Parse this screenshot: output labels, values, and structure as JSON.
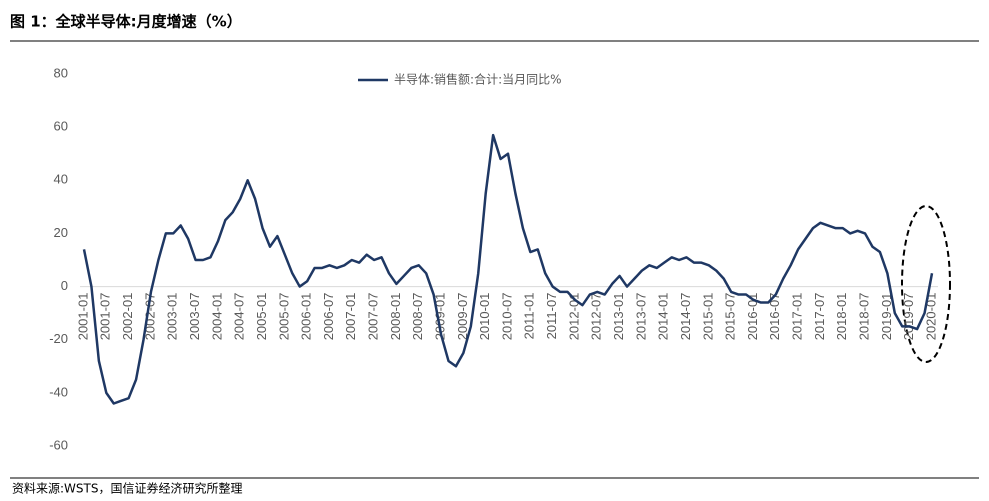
{
  "chart_data": {
    "type": "line",
    "title": "图 1：全球半导体:月度增速（%）",
    "source": "资料来源:WSTS，国信证券经济研究所整理",
    "categories": [
      "2001-01",
      null,
      null,
      "2001-07",
      null,
      null,
      "2002-01",
      null,
      null,
      "2002-07",
      null,
      null,
      "2003-01",
      null,
      null,
      "2003-07",
      null,
      null,
      "2004-01",
      null,
      null,
      "2004-07",
      null,
      null,
      "2005-01",
      null,
      null,
      "2005-07",
      null,
      null,
      "2006-01",
      null,
      null,
      "2006-07",
      null,
      null,
      "2007-01",
      null,
      null,
      "2007-07",
      null,
      null,
      "2008-01",
      null,
      null,
      "2008-07",
      null,
      null,
      "2009-01",
      null,
      null,
      "2009-07",
      null,
      null,
      "2010-01",
      null,
      null,
      "2010-07",
      null,
      null,
      "2011-01",
      null,
      null,
      "2011-07",
      null,
      null,
      "2012-01",
      null,
      null,
      "2012-07",
      null,
      null,
      "2013-01",
      null,
      null,
      "2013-07",
      null,
      null,
      "2014-01",
      null,
      null,
      "2014-07",
      null,
      null,
      "2015-01",
      null,
      null,
      "2015-07",
      null,
      null,
      "2016-01",
      null,
      null,
      "2016-07",
      null,
      null,
      "2017-01",
      null,
      null,
      "2017-07",
      null,
      null,
      "2018-01",
      null,
      null,
      "2018-07",
      null,
      null,
      "2019-01",
      null,
      null,
      "2019-07",
      null,
      null,
      "2020-01"
    ],
    "series": [
      {
        "name": "半导体:销售额:合计:当月同比%",
        "color": "#1f3864",
        "values": [
          14,
          0,
          -28,
          -40,
          -44,
          -43,
          -42,
          -35,
          -20,
          -2,
          10,
          20,
          20,
          23,
          18,
          10,
          10,
          11,
          17,
          25,
          28,
          33,
          40,
          33,
          22,
          15,
          19,
          12,
          5,
          0,
          2,
          7,
          7,
          8,
          7,
          8,
          10,
          9,
          12,
          10,
          11,
          5,
          1,
          4,
          7,
          8,
          5,
          -3,
          -18,
          -28,
          -30,
          -25,
          -15,
          5,
          35,
          57,
          48,
          50,
          35,
          22,
          13,
          14,
          5,
          0,
          -2,
          -2,
          -5,
          -7,
          -3,
          -2,
          -3,
          1,
          4,
          0,
          3,
          6,
          8,
          7,
          9,
          11,
          10,
          11,
          9,
          9,
          8,
          6,
          3,
          -2,
          -3,
          -3,
          -5,
          -6,
          -6,
          -3,
          3,
          8,
          14,
          18,
          22,
          24,
          23,
          22,
          22,
          20,
          21,
          20,
          15,
          13,
          5,
          -10,
          -15,
          -15,
          -16,
          -10,
          5
        ]
      }
    ],
    "ylim": [
      -60,
      80
    ],
    "yticks": [
      -60,
      -40,
      -20,
      0,
      20,
      40,
      60,
      80
    ],
    "grid": false
  }
}
